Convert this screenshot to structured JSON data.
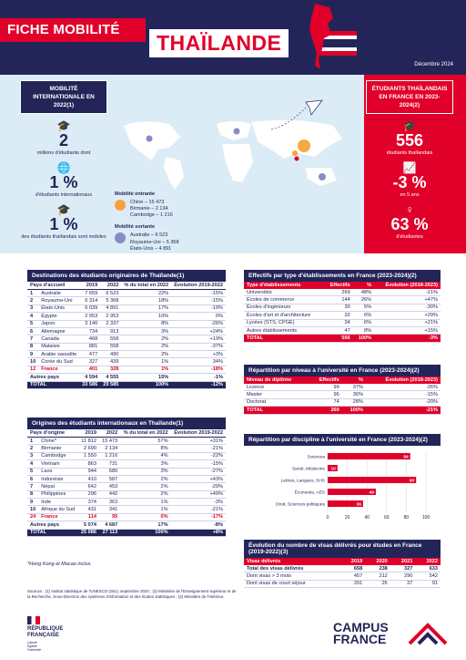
{
  "header": {
    "title": "FICHE MOBILITÉ",
    "country": "THAÏLANDE",
    "date": "Décembre 2024"
  },
  "left_panel": {
    "tag": "MOBILITÉ INTERNATIONALE EN 2022(1)",
    "stats": [
      {
        "value": "2",
        "caption": "millions d'étudiants dont"
      },
      {
        "value": "1 %",
        "caption": "d'étudiants internationaux"
      },
      {
        "value": "1 %",
        "caption": "des étudiants thaïlandais sont mobiles"
      }
    ]
  },
  "right_panel": {
    "tag": "ÉTUDIANTS THAÏLANDAIS EN FRANCE EN 2023-2024(2)",
    "stats": [
      {
        "value": "556",
        "caption": "étudiants thaïlandais"
      },
      {
        "value": "-3 %",
        "caption": "en 5 ans"
      },
      {
        "value": "63 %",
        "caption": "d'étudiantes"
      }
    ]
  },
  "map_legend": {
    "incoming_title": "Mobilité entrante",
    "incoming": [
      "Chine – 15 473",
      "Birmanie – 2 134",
      "Cambodge – 1 216"
    ],
    "outgoing_title": "Mobilité sortante",
    "outgoing": [
      "Australie – 6 523",
      "Royaume-Uni – 5 368",
      "États-Unis – 4 891"
    ],
    "colors": {
      "incoming": "#f7a23a",
      "outgoing": "#8a8ac4"
    }
  },
  "dest_table": {
    "title": "Destinations des étudiants originaires de Thaïlande(1)",
    "headers": [
      "Pays d'accueil",
      "2019",
      "2022",
      "% du total en 2022",
      "Évolution 2019-2022"
    ],
    "rows": [
      [
        "1",
        "Australie",
        "7 659",
        "6 523",
        "22%",
        "-15%"
      ],
      [
        "2",
        "Royaume-Uni",
        "6 314",
        "5 368",
        "18%",
        "-15%"
      ],
      [
        "3",
        "États-Unis",
        "6 039",
        "4 891",
        "17%",
        "-19%"
      ],
      [
        "4",
        "Égypte",
        "2 953",
        "2 953",
        "10%",
        "0%"
      ],
      [
        "5",
        "Japon",
        "3 140",
        "2 337",
        "8%",
        "-26%"
      ],
      [
        "6",
        "Allemagne",
        "734",
        "913",
        "3%",
        "+24%"
      ],
      [
        "7",
        "Canada",
        "468",
        "558",
        "2%",
        "+19%"
      ],
      [
        "8",
        "Malaisie",
        "881",
        "558",
        "2%",
        "-37%"
      ],
      [
        "9",
        "Arabie saoudite",
        "477",
        "490",
        "2%",
        "+3%"
      ],
      [
        "10",
        "Corée du Sud",
        "327",
        "439",
        "1%",
        "34%"
      ],
      [
        "12",
        "France",
        "401",
        "328",
        "1%",
        "-18%"
      ]
    ],
    "other": [
      "Autres pays",
      "4 594",
      "4 555",
      "15%",
      "-1%"
    ],
    "total": [
      "TOTAL",
      "33 586",
      "29 585",
      "100%",
      "-12%"
    ]
  },
  "origin_table": {
    "title": "Origines des étudiants internationaux en Thaïlande(1)",
    "headers": [
      "Pays d'origine",
      "2019",
      "2022",
      "% du total en 2022",
      "Évolution 2019-2022"
    ],
    "rows": [
      [
        "1",
        "Chine*",
        "11 812",
        "15 473",
        "57%",
        "+31%"
      ],
      [
        "2",
        "Birmanie",
        "2 690",
        "2 134",
        "8%",
        "-21%"
      ],
      [
        "3",
        "Cambodge",
        "1 550",
        "1 216",
        "4%",
        "-22%"
      ],
      [
        "4",
        "Vietnam",
        "863",
        "731",
        "3%",
        "-15%"
      ],
      [
        "5",
        "Laos",
        "944",
        "686",
        "3%",
        "-27%"
      ],
      [
        "6",
        "Indonésie",
        "410",
        "587",
        "2%",
        "+43%"
      ],
      [
        "7",
        "Népal",
        "642",
        "453",
        "2%",
        "-29%"
      ],
      [
        "8",
        "Philippines",
        "296",
        "442",
        "2%",
        "+49%"
      ],
      [
        "9",
        "Inde",
        "374",
        "363",
        "1%",
        "-3%"
      ],
      [
        "10",
        "Afrique du Sud",
        "431",
        "341",
        "1%",
        "-21%"
      ],
      [
        "24",
        "France",
        "114",
        "95",
        "0%",
        "-17%"
      ]
    ],
    "other": [
      "Autres pays",
      "5 074",
      "4 687",
      "17%",
      "-8%"
    ],
    "total": [
      "TOTAL",
      "25 086",
      "27 113",
      "100%",
      "+8%"
    ],
    "note": "*Hong Kong et Macao inclus."
  },
  "etab_table": {
    "title": "Effectifs par type d'établissements en France (2023-2024)(2)",
    "headers": [
      "Type d'établissements",
      "Effectifs",
      "%",
      "Évolution (2018-2023)"
    ],
    "rows": [
      [
        "Universités",
        "269",
        "48%",
        "-21%"
      ],
      [
        "Écoles de commerce",
        "144",
        "26%",
        "+47%"
      ],
      [
        "Écoles d'ingénieurs",
        "30",
        "5%",
        "-30%"
      ],
      [
        "Écoles d'art et d'architecture",
        "32",
        "6%",
        "+29%"
      ],
      [
        "Lycées (STS, CPGE)",
        "34",
        "6%",
        "+21%"
      ],
      [
        "Autres établissements",
        "47",
        "8%",
        "+15%"
      ]
    ],
    "total": [
      "TOTAL",
      "556",
      "100%",
      "-3%"
    ]
  },
  "level_table": {
    "title": "Répartition par niveau à l'université en France (2023-2024)(2)",
    "headers": [
      "Niveau de diplôme",
      "Effectifs",
      "%",
      "Évolution (2018-2023)"
    ],
    "rows": [
      [
        "Licence",
        "99",
        "37%",
        "-26%"
      ],
      [
        "Master",
        "96",
        "36%",
        "-15%"
      ],
      [
        "Doctorat",
        "74",
        "28%",
        "-20%"
      ]
    ],
    "total": [
      "TOTAL",
      "269",
      "100%",
      "-21%"
    ]
  },
  "chart_data": {
    "type": "bar",
    "title": "Répartition par discipline à l'université en France (2023-2024)(2)",
    "orientation": "horizontal",
    "categories": [
      "Sciences",
      "Santé, Médecine",
      "Lettres, Langues, SHS",
      "Économie, AES",
      "Droit, Sciences politiques"
    ],
    "values": [
      84,
      10,
      90,
      49,
      36
    ],
    "xlim": [
      0,
      100
    ],
    "xticks": [
      "0",
      "20",
      "40",
      "60",
      "80",
      "100"
    ],
    "bar_color": "#e1002a"
  },
  "visa_table": {
    "title": "Évolution du nombre de visas délivrés pour études en France (2019-2022)(3)",
    "headers": [
      "Visas délivrés",
      "2019",
      "2020",
      "2021",
      "2022"
    ],
    "rows": [
      [
        "Total des visas délivrés",
        "658",
        "238",
        "327",
        "633"
      ],
      [
        "Dont visas > 3 mois",
        "457",
        "212",
        "290",
        "542"
      ],
      [
        "Dont visas de court séjour",
        "201",
        "26",
        "37",
        "91"
      ]
    ]
  },
  "sources": "Sources : (1) Institut statistique de l'UNESCO (ISU), septembre 2024 ; (2) Ministère de l'Enseignement supérieur et de la Recherche, Sous-Direction des systèmes d'information et des études statistiques ; (3) Ministère de l'Intérieur.",
  "logos": {
    "republic": [
      "RÉPUBLIQUE",
      "FRANÇAISE"
    ],
    "motto": [
      "Liberté",
      "Égalité",
      "Fraternité"
    ],
    "campus": [
      "CAMPUS",
      "FRANCE"
    ]
  }
}
